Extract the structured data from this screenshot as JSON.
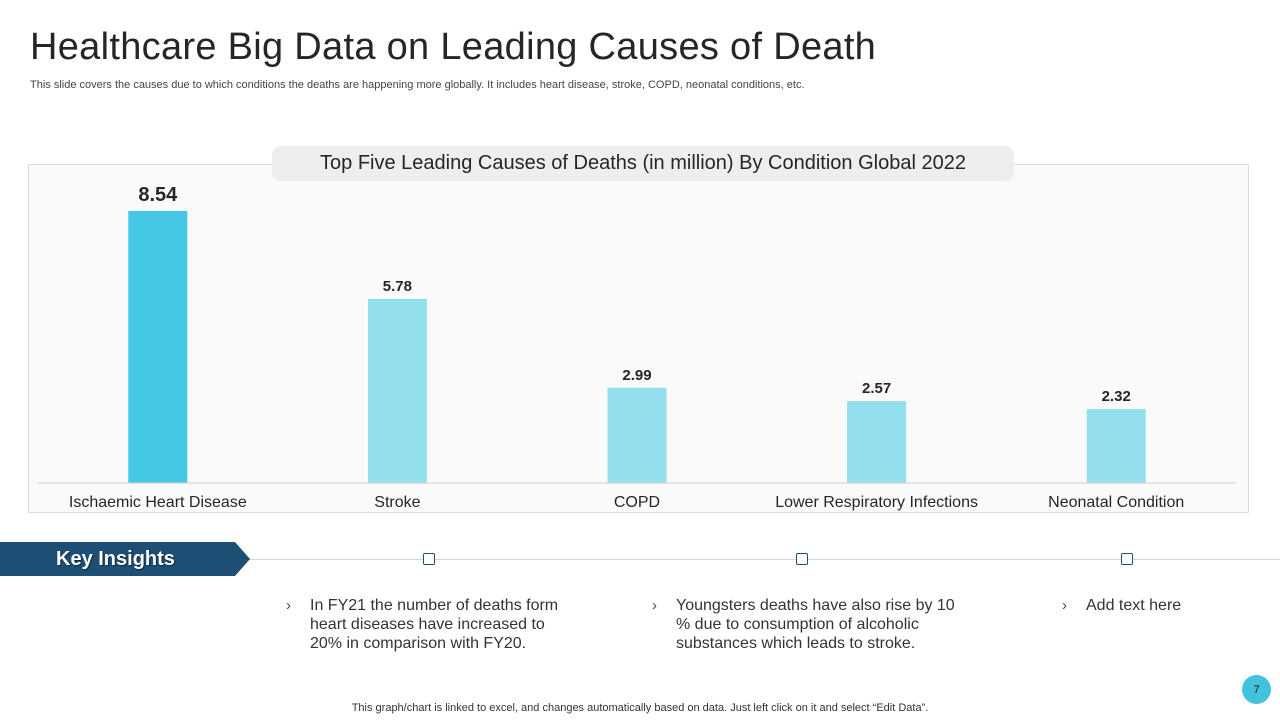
{
  "header": {
    "title": "Healthcare Big Data on Leading Causes of Death",
    "subtitle": "This slide covers the causes due to which conditions  the deaths are happening more globally. It includes heart disease, stroke, COPD, neonatal conditions, etc."
  },
  "chart_data": {
    "type": "bar",
    "title": "Top Five Leading Causes of Deaths (in million) By Condition Global 2022",
    "categories": [
      "Ischaemic Heart Disease",
      "Stroke",
      "COPD",
      "Lower Respiratory Infections",
      "Neonatal Condition"
    ],
    "values": [
      8.54,
      5.78,
      2.99,
      2.57,
      2.32
    ],
    "value_labels": [
      "8.54",
      "5.78",
      "2.99",
      "2.57",
      "2.32"
    ],
    "ylim": [
      0,
      8.54
    ],
    "xlabel": "",
    "ylabel": "",
    "grid": false,
    "highlight_color": "#45c8e4",
    "bar_color": "#93dfee"
  },
  "key_insights": {
    "label": "Key Insights",
    "items": [
      {
        "text": "In FY21 the number of deaths form heart diseases have increased  to 20% in comparison with FY20."
      },
      {
        "text": "Youngsters  deaths have also rise by 10 %  due to consumption of alcoholic substances which leads to stroke."
      },
      {
        "text": "Add text here"
      }
    ],
    "bullet_icon": "chevron-right-icon"
  },
  "footer": {
    "note": "This graph/chart is linked to excel,  and changes automatically based on data. Just left click on it and select “Edit Data”."
  },
  "page": {
    "number": "7"
  }
}
